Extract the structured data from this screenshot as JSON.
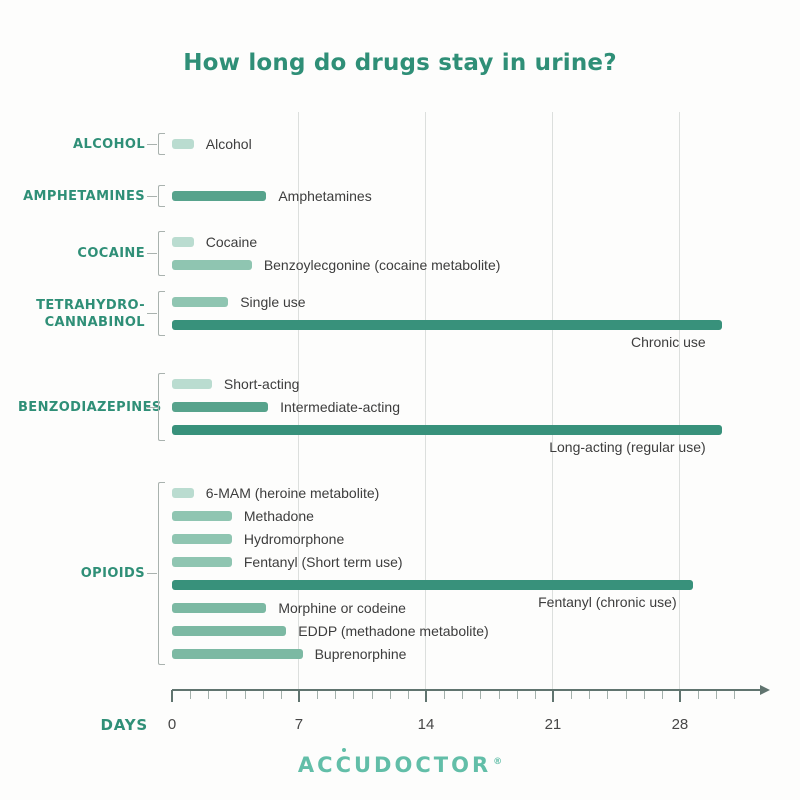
{
  "page": {
    "title": "How long do drugs stay in urine?",
    "colors": {
      "background": "#fdfdfc",
      "teal": "#2f8f77",
      "ink": "#3d3d3d",
      "tick_ink": "#474747",
      "grid": "#dcdfdd",
      "axis_major": "#60746f",
      "axis_minor": "#a3b0ab",
      "bracket": "#a9b2ae",
      "logo": "#62bea8"
    }
  },
  "footer": {
    "logo_text": "ACCUDOCTOR",
    "registered_mark": "®"
  },
  "chart_data": {
    "type": "bar",
    "orientation": "horizontal",
    "title": "How long do drugs stay in urine?",
    "xlabel": "DAYS",
    "x_ticks": [
      0,
      7,
      14,
      21,
      28
    ],
    "x_minor_tick_interval": 1,
    "x_axis_range": [
      0,
      31
    ],
    "grid": "vertical gridlines at 7, 14, 21, 28 days",
    "legend": "none",
    "colors": {
      "light": "#badcd0",
      "medium": "#8fc5b1",
      "medium2": "#7cb9a3",
      "strong": "#57a38c",
      "dark": "#38917b"
    },
    "groups": [
      {
        "name": "ALCOHOL",
        "label_lines": [
          "ALCOHOL"
        ],
        "bars": [
          {
            "label": "Alcohol",
            "days": 1.2,
            "shade": "light",
            "label_position": "right"
          }
        ]
      },
      {
        "name": "AMPHETAMINES",
        "label_lines": [
          "AMPHETAMINES"
        ],
        "bars": [
          {
            "label": "Amphetamines",
            "days": 5.2,
            "shade": "strong",
            "label_position": "right"
          }
        ]
      },
      {
        "name": "COCAINE",
        "label_lines": [
          "COCAINE"
        ],
        "bars": [
          {
            "label": "Cocaine",
            "days": 1.2,
            "shade": "light",
            "label_position": "right"
          },
          {
            "label": "Benzoylecgonine (cocaine metabolite)",
            "days": 4.4,
            "shade": "medium",
            "label_position": "right"
          }
        ]
      },
      {
        "name": "TETRAHYDROCANNABINOL",
        "label_lines": [
          "TETRAHYDRO-",
          "CANNABINOL"
        ],
        "bars": [
          {
            "label": "Single use",
            "days": 3.1,
            "shade": "medium",
            "label_position": "right"
          },
          {
            "label": "Chronic use",
            "days": 30.3,
            "shade": "dark",
            "label_position": "below"
          }
        ]
      },
      {
        "name": "BENZODIAZEPINES",
        "label_lines": [
          "BENZODIAZEPINES"
        ],
        "bars": [
          {
            "label": "Short-acting",
            "days": 2.2,
            "shade": "light",
            "label_position": "right"
          },
          {
            "label": "Intermediate-acting",
            "days": 5.3,
            "shade": "strong",
            "label_position": "right"
          },
          {
            "label": "Long-acting (regular use)",
            "days": 30.3,
            "shade": "dark",
            "label_position": "below"
          }
        ]
      },
      {
        "name": "OPIOIDS",
        "label_lines": [
          "OPIOIDS"
        ],
        "bars": [
          {
            "label": "6-MAM (heroine metabolite)",
            "days": 1.2,
            "shade": "light",
            "label_position": "right"
          },
          {
            "label": "Methadone",
            "days": 3.3,
            "shade": "medium",
            "label_position": "right"
          },
          {
            "label": "Hydromorphone",
            "days": 3.3,
            "shade": "medium",
            "label_position": "right"
          },
          {
            "label": "Fentanyl (Short term use)",
            "days": 3.3,
            "shade": "medium",
            "label_position": "right"
          },
          {
            "label": "Fentanyl (chronic use)",
            "days": 28.7,
            "shade": "dark",
            "label_position": "below"
          },
          {
            "label": "Morphine or codeine",
            "days": 5.2,
            "shade": "medium2",
            "label_position": "right"
          },
          {
            "label": "EDDP (methadone metabolite)",
            "days": 6.3,
            "shade": "medium2",
            "label_position": "right"
          },
          {
            "label": "Buprenorphine",
            "days": 7.2,
            "shade": "medium2",
            "label_position": "right"
          }
        ]
      }
    ]
  }
}
